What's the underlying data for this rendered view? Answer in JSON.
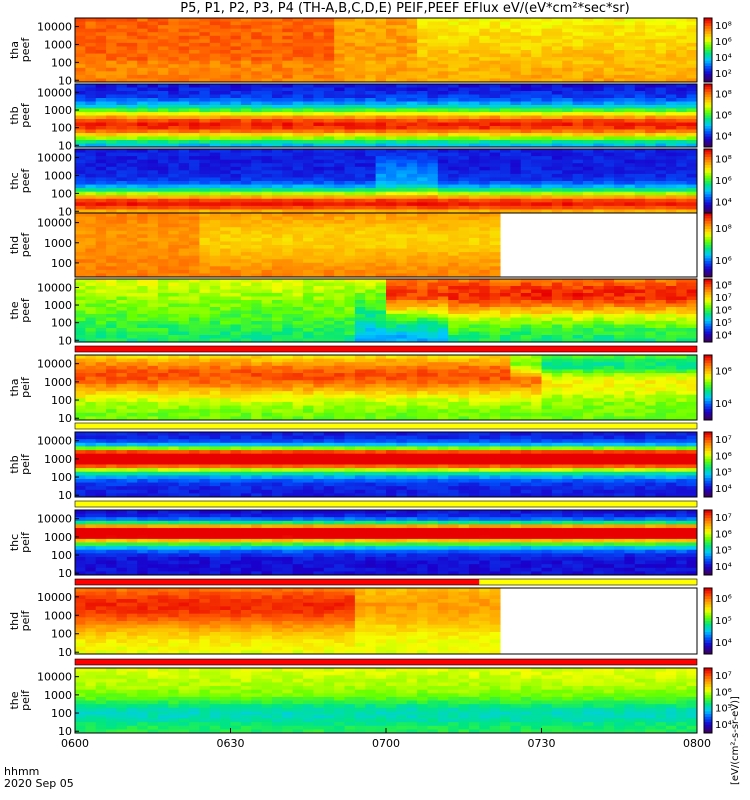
{
  "figure": {
    "title": "P5, P1, P2, P3, P4 (TH-A,B,C,D,E) PEIF,PEEF EFlux eV/(eV*cm²*sec*sr)",
    "xaxis_name": "hhmm",
    "date": "2020 Sep 05",
    "colorbar_title": "[eV/(cm²-s-sr-eV)]"
  },
  "chart_data": {
    "type": "heatmap",
    "x_ticks": [
      "0600",
      "0630",
      "0700",
      "0730",
      "0800"
    ],
    "xlim": [
      "06:00",
      "08:00"
    ],
    "panels": [
      {
        "ylabel": [
          "tha",
          "peef"
        ],
        "y_ticks": [
          "10000",
          "1000",
          "100",
          "10"
        ],
        "ylog": true,
        "ylim": [
          8,
          30000
        ],
        "cbar_ticks": [
          "10⁸",
          "10⁶",
          "10⁴",
          "10²"
        ],
        "data_end": "08:00",
        "description": "hot flux over all energies, strongest below 07:00"
      },
      {
        "ylabel": [
          "thb",
          "peef"
        ],
        "y_ticks": [
          "10000",
          "1000",
          "100",
          "10"
        ],
        "ylog": true,
        "ylim": [
          8,
          30000
        ],
        "cbar_ticks": [
          "10⁸",
          "10⁶",
          "10⁴"
        ],
        "data_end": "08:00",
        "description": "peak flux near 100-500 eV"
      },
      {
        "ylabel": [
          "thc",
          "peef"
        ],
        "y_ticks": [
          "10000",
          "1000",
          "100",
          "10"
        ],
        "ylog": true,
        "ylim": [
          8,
          30000
        ],
        "cbar_ticks": [
          "10⁸",
          "10⁶",
          "10⁴"
        ],
        "data_end": "08:00",
        "description": "peak flux near 10-100 eV"
      },
      {
        "ylabel": [
          "thd",
          "peef"
        ],
        "y_ticks": [
          "10000",
          "1000",
          "100"
        ],
        "ylog": true,
        "ylim": [
          20,
          30000
        ],
        "cbar_ticks": [
          "10⁸",
          "10⁶"
        ],
        "data_end": "07:22",
        "description": "hot flux, data gap after 07:22"
      },
      {
        "ylabel": [
          "the",
          "peef"
        ],
        "y_ticks": [
          "10000",
          "1000",
          "100",
          "10"
        ],
        "ylog": true,
        "ylim": [
          8,
          30000
        ],
        "cbar_ticks": [
          "10⁸",
          "10⁷",
          "10⁶",
          "10⁵",
          "10⁴"
        ],
        "data_end": "08:00",
        "description": "enhancement at high energy after 06:55"
      },
      {
        "ylabel": [
          "tha",
          "peif"
        ],
        "y_ticks": [
          "10000",
          "1000",
          "100",
          "10"
        ],
        "ylog": true,
        "ylim": [
          8,
          30000
        ],
        "cbar_ticks": [
          "10⁶",
          "10⁴"
        ],
        "data_end": "08:00",
        "description": "broad ion flux, peak at keV energies"
      },
      {
        "ylabel": [
          "thb",
          "peif"
        ],
        "y_ticks": [
          "10000",
          "1000",
          "100",
          "10"
        ],
        "ylog": true,
        "ylim": [
          8,
          30000
        ],
        "cbar_ticks": [
          "10⁷",
          "10⁶",
          "10⁵",
          "10⁴"
        ],
        "data_end": "08:00",
        "description": "narrow band near 1000 eV"
      },
      {
        "ylabel": [
          "thc",
          "peif"
        ],
        "y_ticks": [
          "10000",
          "1000",
          "100",
          "10"
        ],
        "ylog": true,
        "ylim": [
          8,
          30000
        ],
        "cbar_ticks": [
          "10⁷",
          "10⁶",
          "10⁵",
          "10⁴"
        ],
        "data_end": "08:00",
        "description": "narrow band near 1000 eV"
      },
      {
        "ylabel": [
          "thd",
          "peif"
        ],
        "y_ticks": [
          "10000",
          "1000",
          "100",
          "10"
        ],
        "ylog": true,
        "ylim": [
          8,
          30000
        ],
        "cbar_ticks": [
          "10⁶",
          "10⁵",
          "10⁴"
        ],
        "data_end": "07:22",
        "description": "hot ion flux, data gap after 07:22"
      },
      {
        "ylabel": [
          "the",
          "peif"
        ],
        "y_ticks": [
          "10000",
          "1000",
          "100",
          "10"
        ],
        "ylog": true,
        "ylim": [
          8,
          30000
        ],
        "cbar_ticks": [
          "10⁷",
          "10⁶",
          "10⁵",
          "10⁴"
        ],
        "data_end": "08:00",
        "description": "moderate ion flux"
      }
    ],
    "colormap": [
      "#3a0066",
      "#1a00cc",
      "#0055ff",
      "#00c8ff",
      "#00e680",
      "#66ff00",
      "#f5ff00",
      "#ffb000",
      "#ff5a00",
      "#e80000"
    ],
    "status_bars": [
      {
        "after_panel": 5,
        "color": "#ff0000"
      },
      {
        "after_panel": 6,
        "color": "#ffff00"
      },
      {
        "after_panel": 7,
        "color": "#ffff00"
      },
      {
        "after_panel": 8,
        "color": "#ff0000",
        "secondary_color": "#ffff00",
        "split": "07:18"
      },
      {
        "after_panel": 9,
        "color": "#ff0000"
      }
    ]
  }
}
